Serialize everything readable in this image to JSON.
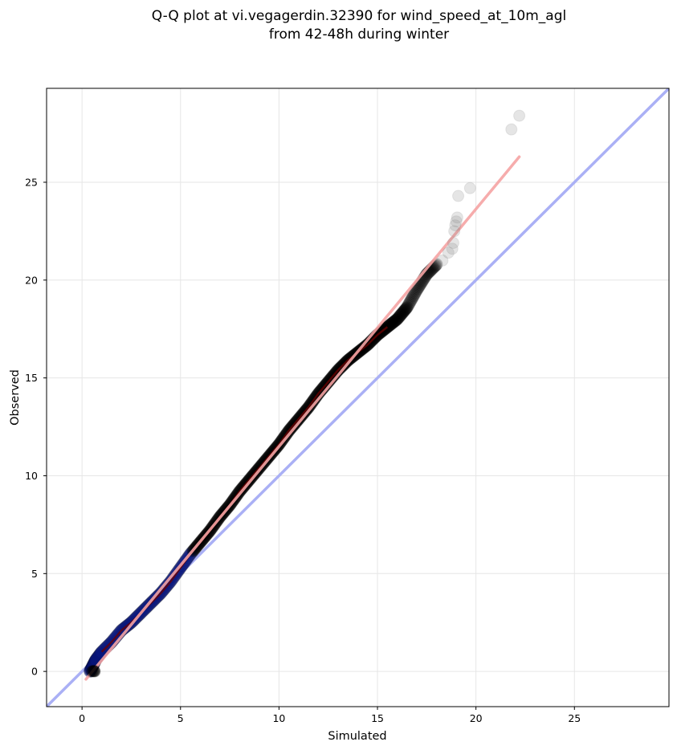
{
  "chart_data": {
    "type": "scatter",
    "title_line1": "Q-Q plot at vi.vegagerdin.32390 for wind_speed_at_10m_agl",
    "title_line2": "from 42-48h during winter",
    "xlabel": "Simulated",
    "ylabel": "Observed",
    "xlim": [
      -1.8,
      29.8
    ],
    "ylim": [
      -1.8,
      29.8
    ],
    "xticks": [
      0,
      5,
      10,
      15,
      20,
      25
    ],
    "yticks": [
      0,
      5,
      10,
      15,
      20,
      25
    ],
    "grid": true,
    "identity_line": {
      "x": [
        -1.8,
        29.8
      ],
      "y": [
        -1.8,
        29.8
      ],
      "color": "#aab0f5"
    },
    "fit_line": {
      "x": [
        0.2,
        22.2
      ],
      "y": [
        -0.4,
        26.3
      ],
      "color": "#f5a3a3"
    },
    "quantile_curve": {
      "x": [
        0.4,
        0.55,
        0.7,
        1.0,
        1.5,
        2.0,
        2.5,
        3.0,
        3.5,
        4.0,
        4.5,
        5.0,
        5.5,
        6.0,
        6.5,
        7.0,
        7.5,
        8.0,
        8.5,
        9.0,
        9.5,
        10.0,
        10.5,
        11.0,
        11.5,
        12.0,
        12.5,
        13.0,
        13.5,
        14.0,
        14.5,
        15.0,
        15.5,
        16.0,
        16.5,
        17.0,
        17.5,
        18.0
      ],
      "y": [
        0.0,
        0.3,
        0.6,
        1.0,
        1.5,
        2.1,
        2.5,
        3.0,
        3.5,
        4.0,
        4.6,
        5.3,
        6.0,
        6.6,
        7.2,
        7.9,
        8.5,
        9.2,
        9.8,
        10.4,
        11.0,
        11.6,
        12.3,
        12.9,
        13.5,
        14.2,
        14.8,
        15.4,
        15.9,
        16.3,
        16.7,
        17.2,
        17.6,
        18.0,
        18.6,
        19.5,
        20.3,
        20.8
      ],
      "color": "#000000",
      "low_end_color": "#0a1a8a",
      "mid_color": "#6e0000"
    },
    "tail_points": {
      "x": [
        18.3,
        18.6,
        18.8,
        18.85,
        18.9,
        18.95,
        19.0,
        19.05,
        19.1,
        19.7,
        21.8,
        22.2
      ],
      "y": [
        21.0,
        21.4,
        21.6,
        21.9,
        22.5,
        22.8,
        23.0,
        23.2,
        24.3,
        24.7,
        27.7,
        28.4
      ]
    },
    "low_cluster_points": {
      "x": [
        0.5,
        0.55,
        0.6,
        0.62,
        0.65
      ],
      "y": [
        0.0,
        0.02,
        0.0,
        0.03,
        0.0
      ]
    }
  }
}
